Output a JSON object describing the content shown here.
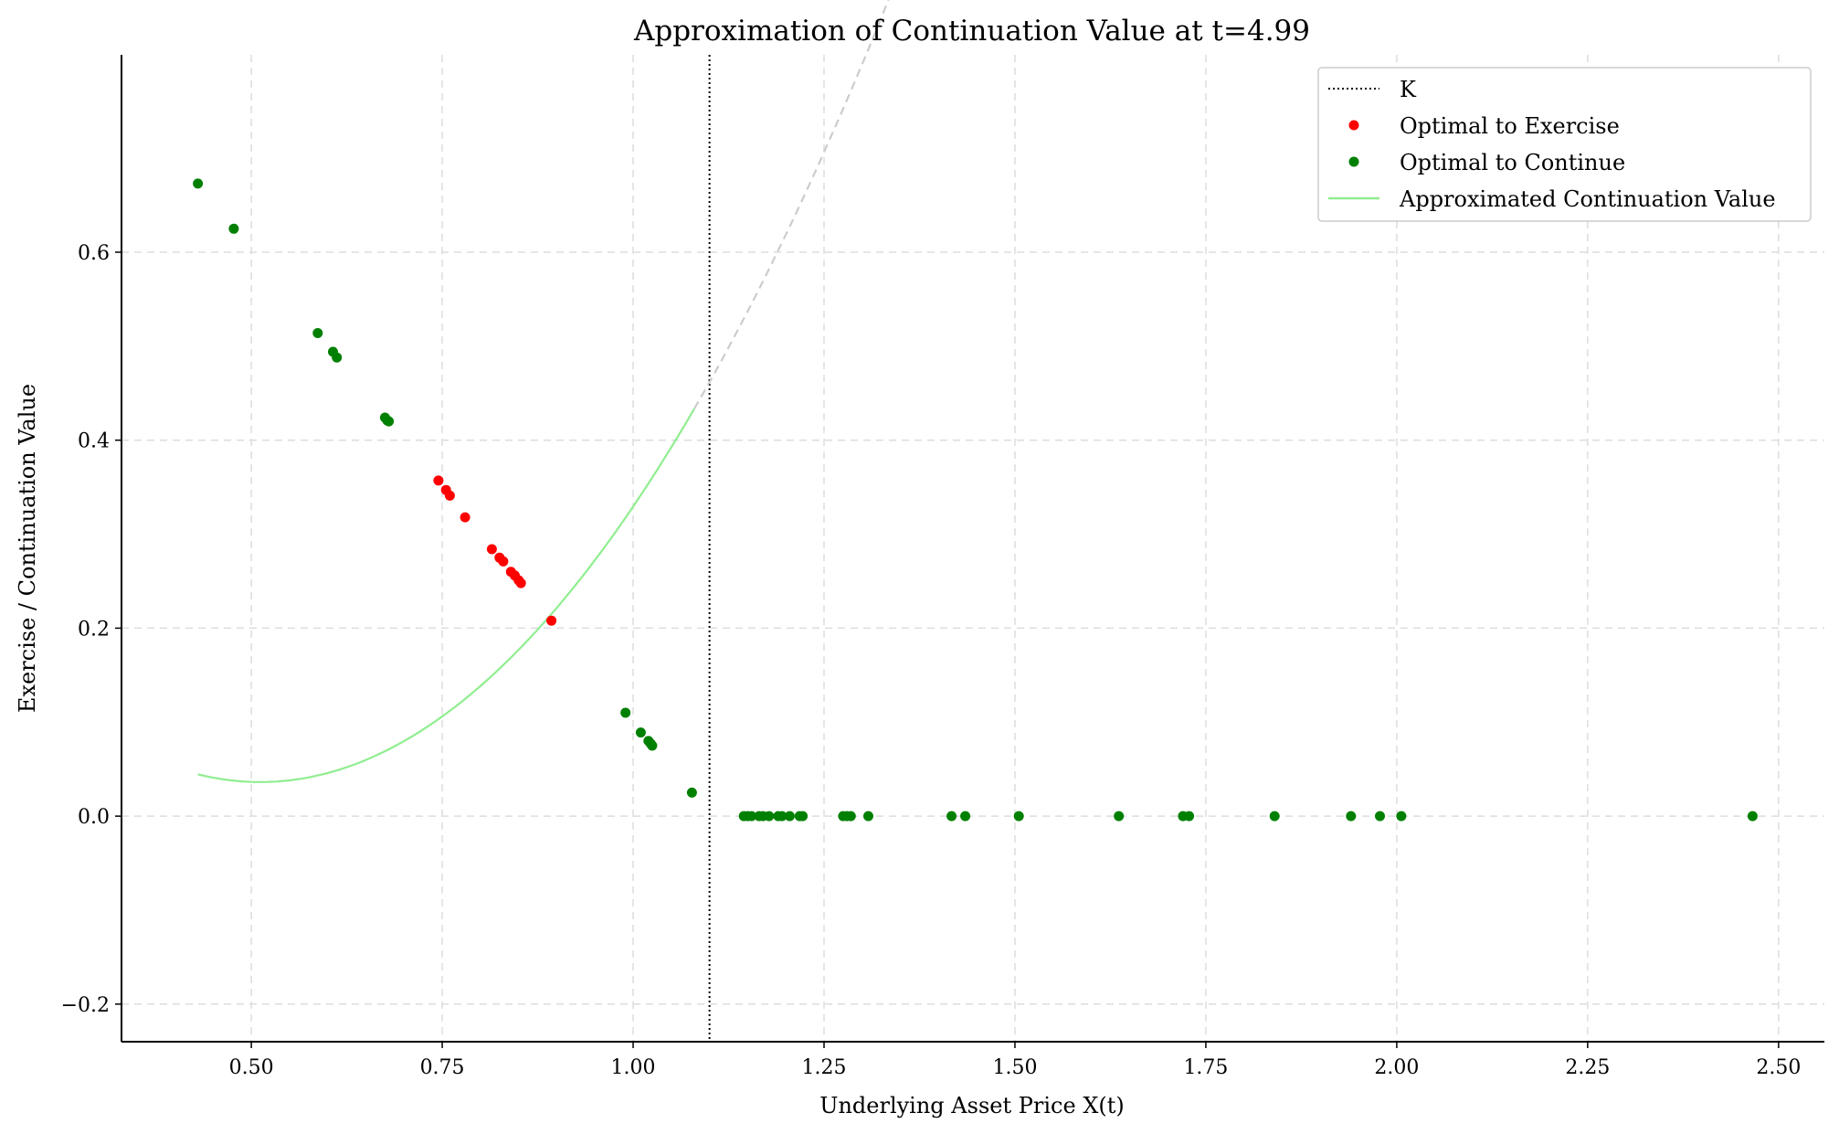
{
  "chart_data": {
    "type": "scatter",
    "title": "Approximation of Continuation Value at t=4.99",
    "xlabel": "Underlying Asset Price X(t)",
    "ylabel": "Exercise / Continuation Value",
    "xlim": [
      0.33,
      2.56
    ],
    "ylim": [
      -0.24,
      0.81
    ],
    "xticks": [
      0.5,
      0.75,
      1.0,
      1.25,
      1.5,
      1.75,
      2.0,
      2.25,
      2.5
    ],
    "xtick_labels": [
      "0.50",
      "0.75",
      "1.00",
      "1.25",
      "1.50",
      "1.75",
      "2.00",
      "2.25",
      "2.50"
    ],
    "yticks": [
      -0.2,
      0.0,
      0.2,
      0.4,
      0.6
    ],
    "ytick_labels": [
      "−0.2",
      "0.0",
      "0.2",
      "0.4",
      "0.6"
    ],
    "grid": true,
    "legend_position": "top-right",
    "strike_line": {
      "name": "K",
      "x": 1.1,
      "color": "#000000",
      "style": "dotted"
    },
    "series": [
      {
        "name": "Optimal to Exercise",
        "kind": "points",
        "color": "#ff0000",
        "points": [
          [
            0.745,
            0.357
          ],
          [
            0.755,
            0.347
          ],
          [
            0.76,
            0.341
          ],
          [
            0.78,
            0.318
          ],
          [
            0.815,
            0.284
          ],
          [
            0.825,
            0.275
          ],
          [
            0.83,
            0.271
          ],
          [
            0.84,
            0.26
          ],
          [
            0.845,
            0.256
          ],
          [
            0.85,
            0.251
          ],
          [
            0.853,
            0.248
          ],
          [
            0.893,
            0.208
          ]
        ]
      },
      {
        "name": "Optimal to Continue",
        "kind": "points",
        "color": "#008000",
        "points": [
          [
            0.43,
            0.673
          ],
          [
            0.477,
            0.625
          ],
          [
            0.587,
            0.514
          ],
          [
            0.607,
            0.494
          ],
          [
            0.612,
            0.488
          ],
          [
            0.675,
            0.424
          ],
          [
            0.678,
            0.421
          ],
          [
            0.68,
            0.42
          ],
          [
            0.99,
            0.11
          ],
          [
            1.01,
            0.089
          ],
          [
            1.02,
            0.08
          ],
          [
            1.023,
            0.077
          ],
          [
            1.025,
            0.075
          ],
          [
            1.077,
            0.025
          ],
          [
            1.145,
            0.0
          ],
          [
            1.15,
            0.0
          ],
          [
            1.155,
            0.0
          ],
          [
            1.165,
            0.0
          ],
          [
            1.17,
            0.0
          ],
          [
            1.178,
            0.0
          ],
          [
            1.19,
            0.0
          ],
          [
            1.195,
            0.0
          ],
          [
            1.205,
            0.0
          ],
          [
            1.218,
            0.0
          ],
          [
            1.222,
            0.0
          ],
          [
            1.275,
            0.0
          ],
          [
            1.28,
            0.0
          ],
          [
            1.285,
            0.0
          ],
          [
            1.308,
            0.0
          ],
          [
            1.417,
            0.0
          ],
          [
            1.435,
            0.0
          ],
          [
            1.505,
            0.0
          ],
          [
            1.636,
            0.0
          ],
          [
            1.72,
            0.0
          ],
          [
            1.728,
            0.0
          ],
          [
            1.84,
            0.0
          ],
          [
            1.94,
            0.0
          ],
          [
            1.978,
            0.0
          ],
          [
            2.006,
            0.0
          ],
          [
            2.466,
            0.0
          ]
        ]
      },
      {
        "name": "Approximated Continuation Value",
        "kind": "line",
        "color": "#90ee90",
        "polynomial": [
          1.2296,
          -1.2585,
          0.3583
        ],
        "x_range": [
          0.43,
          1.08
        ]
      }
    ],
    "extended_curve": {
      "color": "#cccccc",
      "style": "dashed",
      "polynomial": [
        1.2296,
        -1.2585,
        0.3583
      ],
      "x_range": [
        1.08,
        2.47
      ]
    }
  }
}
